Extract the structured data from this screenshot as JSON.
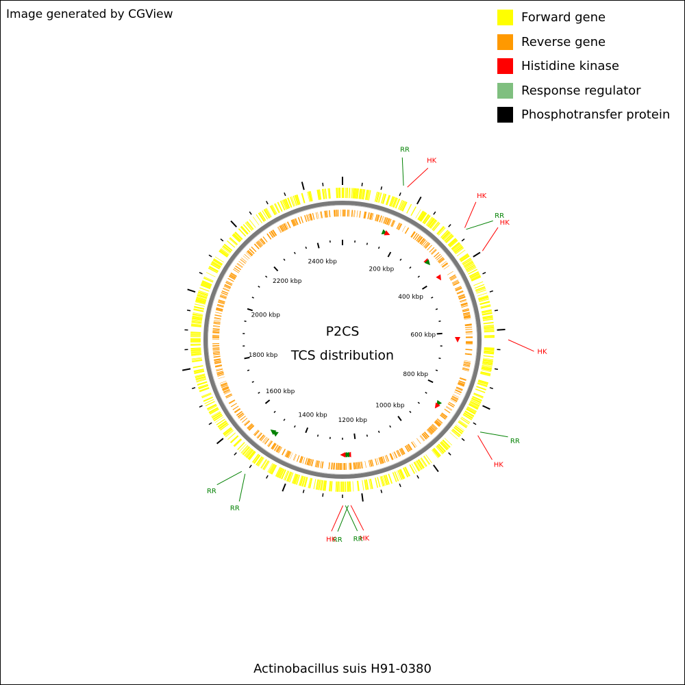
{
  "credit": "Image generated by CGView",
  "title": "Actinobacillus suis H91-0380",
  "center": {
    "line1": "P2CS",
    "line2": "TCS distribution"
  },
  "legend": [
    {
      "label": "Forward gene",
      "color": "#ffff00"
    },
    {
      "label": "Reverse gene",
      "color": "#ff9900"
    },
    {
      "label": "Histidine kinase",
      "color": "#ff0000"
    },
    {
      "label": "Response regulator",
      "color": "#7fbf7f"
    },
    {
      "label": "Phosphotransfer protein",
      "color": "#000000"
    }
  ],
  "genome": {
    "length_kbp": 2500,
    "labeled_ticks": [
      {
        "label": "200 kbp",
        "kbp": 200
      },
      {
        "label": "400 kbp",
        "kbp": 400
      },
      {
        "label": "600 kbp",
        "kbp": 600
      },
      {
        "label": "800 kbp",
        "kbp": 800
      },
      {
        "label": "1000 kbp",
        "kbp": 1000
      },
      {
        "label": "1200 kbp",
        "kbp": 1200
      },
      {
        "label": "1400 kbp",
        "kbp": 1400
      },
      {
        "label": "1600 kbp",
        "kbp": 1600
      },
      {
        "label": "1800 kbp",
        "kbp": 1800
      },
      {
        "label": "2000 kbp",
        "kbp": 2000
      },
      {
        "label": "2200 kbp",
        "kbp": 2200
      },
      {
        "label": "2400 kbp",
        "kbp": 2400
      }
    ]
  },
  "features": [
    {
      "type": "RR",
      "kbp": 150
    },
    {
      "type": "HK",
      "kbp": 160
    },
    {
      "type": "HK",
      "kbp": 330
    },
    {
      "type": "RR",
      "kbp": 335
    },
    {
      "type": "HK",
      "kbp": 400
    },
    {
      "type": "HK",
      "kbp": 625
    },
    {
      "type": "RR",
      "kbp": 860
    },
    {
      "type": "HK",
      "kbp": 870
    },
    {
      "type": "HK",
      "kbp": 1230
    },
    {
      "type": "RR",
      "kbp": 1236
    },
    {
      "type": "RR",
      "kbp": 1243
    },
    {
      "type": "HK",
      "kbp": 1249
    },
    {
      "type": "RR",
      "kbp": 1500
    },
    {
      "type": "RR",
      "kbp": 1510
    }
  ],
  "feature_colors": {
    "HK": "#ff0000",
    "RR": "#008000"
  }
}
